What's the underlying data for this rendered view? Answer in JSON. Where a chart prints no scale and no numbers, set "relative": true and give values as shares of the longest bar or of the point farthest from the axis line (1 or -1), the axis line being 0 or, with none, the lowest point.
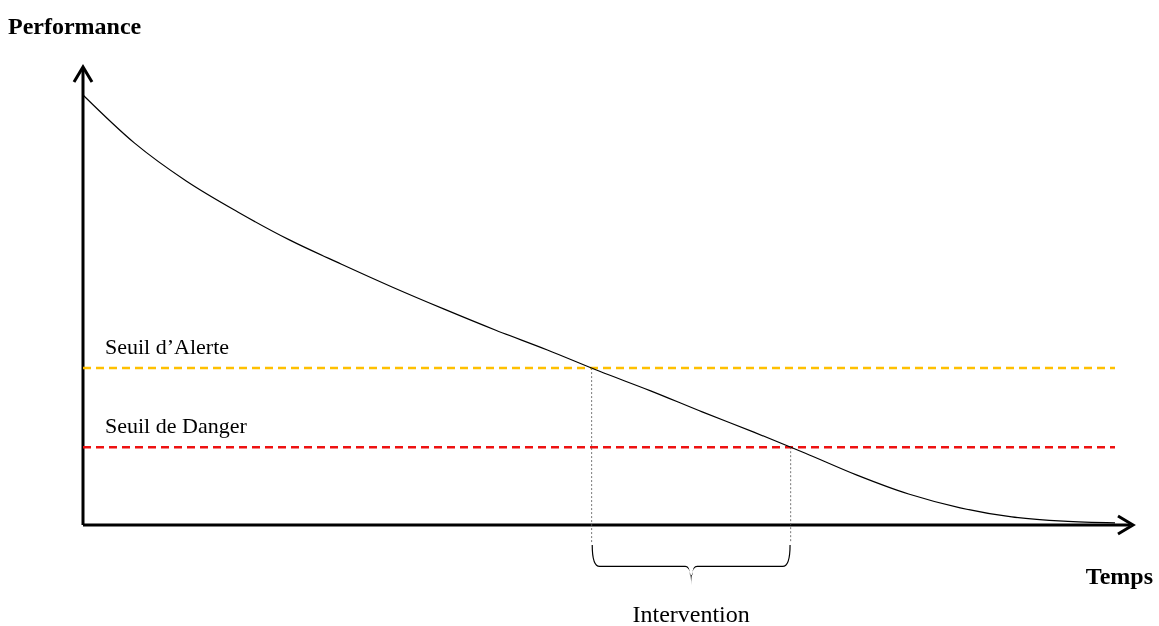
{
  "chart_data": {
    "type": "line",
    "ylabel": "Performance",
    "xlabel": "Temps",
    "relative": true,
    "categories": [
      null,
      null,
      null,
      null,
      null,
      null,
      null,
      null,
      null,
      null,
      null,
      null,
      null,
      null,
      null,
      null,
      null,
      null,
      null,
      null,
      null
    ],
    "series": [
      {
        "color": "#000000",
        "values": [
          1,
          0.888,
          0.8,
          0.728,
          0.663,
          0.607,
          0.553,
          0.502,
          0.453,
          0.407,
          0.358,
          0.312,
          0.263,
          0.216,
          0.167,
          0.116,
          0.072,
          0.04,
          0.019,
          0.009,
          0.005
        ]
      }
    ],
    "ref_lines": [
      {
        "axis": "y",
        "value": 0.365,
        "label": "Seuil d’Alerte",
        "color": "#ffc000",
        "line_style": "dashed"
      },
      {
        "axis": "y",
        "value": 0.181,
        "label": "Seuil de Danger",
        "color": "#ee1111",
        "line_style": "dashed"
      }
    ],
    "annotations": [
      "Intervention"
    ]
  }
}
